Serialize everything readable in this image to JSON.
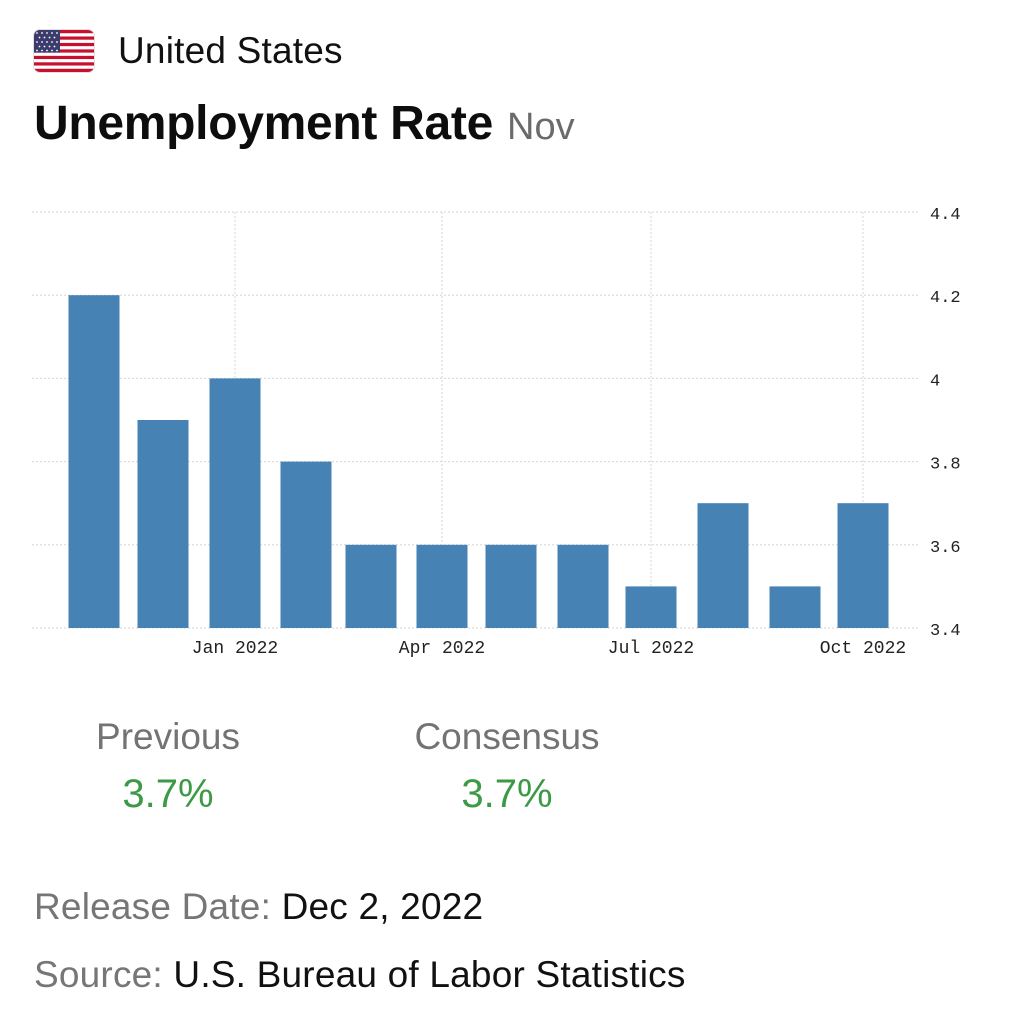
{
  "header": {
    "country": "United States",
    "flag_icon": "us-flag-icon",
    "title": "Unemployment Rate",
    "period": "Nov"
  },
  "chart_data": {
    "type": "bar",
    "title": "",
    "xlabel": "",
    "ylabel": "",
    "ylim": [
      3.4,
      4.4
    ],
    "y_ticks": [
      "4.4",
      "4.2",
      "4",
      "3.8",
      "3.6",
      "3.4"
    ],
    "y_axis_side": "right",
    "x_tick_labels": [
      "Jan 2022",
      "Apr 2022",
      "Jul 2022",
      "Oct 2022"
    ],
    "bar_color": "#4682b4",
    "grid": true,
    "values": [
      4.2,
      3.9,
      4.0,
      3.8,
      3.6,
      3.6,
      3.6,
      3.6,
      3.5,
      3.7,
      3.5,
      3.7
    ]
  },
  "stats": {
    "previous": {
      "label": "Previous",
      "value": "3.7%"
    },
    "consensus": {
      "label": "Consensus",
      "value": "3.7%"
    }
  },
  "release": {
    "label": "Release Date:",
    "value": "Dec 2, 2022"
  },
  "source": {
    "label": "Source:",
    "value": "U.S. Bureau of Labor Statistics"
  },
  "colors": {
    "positive": "#3c9a46",
    "muted": "#767676",
    "bar": "#4682b4"
  }
}
